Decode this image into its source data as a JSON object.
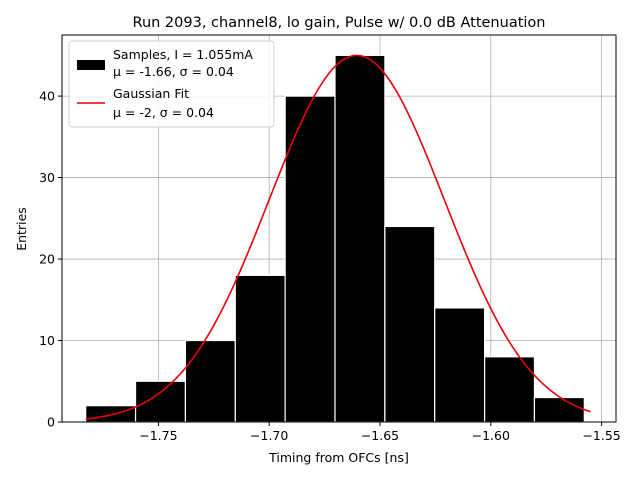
{
  "chart_data": {
    "type": "bar",
    "title": "Run 2093, channel8, lo gain, Pulse w/ 0.0 dB Attenuation",
    "xlabel": "Timing from OFCs [ns]",
    "ylabel": "Entries",
    "xlim": [
      -1.7935,
      -1.5435
    ],
    "ylim": [
      0,
      47.5
    ],
    "xticks": [
      -1.75,
      -1.7,
      -1.65,
      -1.6,
      -1.55
    ],
    "xtick_labels": [
      "−1.75",
      "−1.70",
      "−1.65",
      "−1.60",
      "−1.55"
    ],
    "yticks": [
      0,
      10,
      20,
      30,
      40
    ],
    "ytick_labels": [
      "0",
      "10",
      "20",
      "30",
      "40"
    ],
    "grid": true,
    "legend_position": "top-left",
    "histogram": {
      "name": "Samples, I = 1.055mA",
      "stats": "μ = -1.66, σ = 0.04",
      "color": "#000000",
      "edge_color": "#ffffff",
      "bin_edges": [
        -1.7828,
        -1.7603,
        -1.7378,
        -1.7153,
        -1.6928,
        -1.6703,
        -1.6478,
        -1.6253,
        -1.6028,
        -1.5803,
        -1.5578
      ],
      "counts": [
        2,
        5,
        10,
        18,
        40,
        45,
        24,
        14,
        8,
        3
      ]
    },
    "fit": {
      "name": "Gaussian Fit",
      "stats": "μ = -2, σ = 0.04",
      "color": "#e8000b",
      "mu": -1.6605,
      "sigma": 0.0395,
      "amplitude": 45.0,
      "x_range": [
        -1.7828,
        -1.555
      ]
    }
  }
}
